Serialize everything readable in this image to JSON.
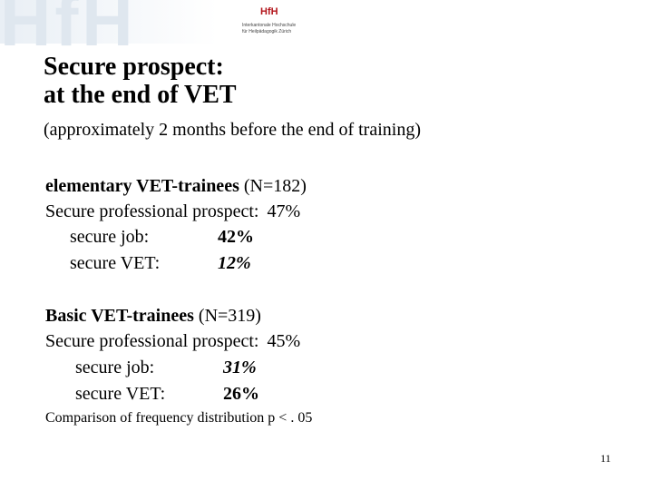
{
  "logo": {
    "watermark": "HfH",
    "mark": "HfH",
    "lines": [
      "Interkantonale Hochschule",
      "für Heilpädagogik Zürich"
    ]
  },
  "title": {
    "lines": [
      "Secure prospect:",
      "at the end of VET"
    ]
  },
  "subtitle": "(approximately 2 months before the end of training)",
  "sections": [
    {
      "heading": "elementary VET-trainees",
      "n": "(N=182)",
      "prospect_label": "Secure professional prospect:",
      "prospect_value": "47%",
      "items": [
        {
          "label": "secure job:",
          "value": "42%"
        },
        {
          "label": "secure VET:",
          "value": "12%"
        }
      ]
    },
    {
      "heading": "Basic VET-trainees",
      "n": "(N=319)",
      "prospect_label": "Secure professional prospect:",
      "prospect_value": "45%",
      "items": [
        {
          "label": "secure job:",
          "value": "31%"
        },
        {
          "label": "secure VET:",
          "value": "26%"
        }
      ]
    }
  ],
  "footnote": "Comparison of frequency distribution p < . 05",
  "page_number": "11"
}
